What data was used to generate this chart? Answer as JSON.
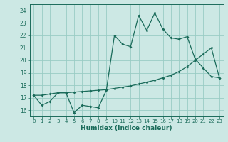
{
  "xlabel": "Humidex (Indice chaleur)",
  "ylabel": "",
  "bg_color": "#cce8e4",
  "grid_color": "#99ccc4",
  "line_color": "#1a6b5a",
  "xlim": [
    -0.5,
    23.5
  ],
  "ylim": [
    15.5,
    24.5
  ],
  "xticks": [
    0,
    1,
    2,
    3,
    4,
    5,
    6,
    7,
    8,
    9,
    10,
    11,
    12,
    13,
    14,
    15,
    16,
    17,
    18,
    19,
    20,
    21,
    22,
    23
  ],
  "yticks": [
    16,
    17,
    18,
    19,
    20,
    21,
    22,
    23,
    24
  ],
  "series1_x": [
    0,
    1,
    2,
    3,
    4,
    5,
    6,
    7,
    8,
    9,
    10,
    11,
    12,
    13,
    14,
    15,
    16,
    17,
    18,
    19,
    20,
    21,
    22,
    23
  ],
  "series1_y": [
    17.2,
    16.4,
    16.7,
    17.4,
    17.4,
    15.8,
    16.4,
    16.3,
    16.2,
    17.6,
    22.0,
    21.3,
    21.1,
    23.6,
    22.4,
    23.8,
    22.5,
    21.8,
    21.7,
    21.9,
    20.1,
    19.4,
    18.7,
    18.6
  ],
  "series2_x": [
    0,
    1,
    2,
    3,
    4,
    5,
    6,
    7,
    8,
    9,
    10,
    11,
    12,
    13,
    14,
    15,
    16,
    17,
    18,
    19,
    20,
    21,
    22,
    23
  ],
  "series2_y": [
    17.2,
    17.2,
    17.3,
    17.4,
    17.4,
    17.45,
    17.5,
    17.55,
    17.6,
    17.65,
    17.75,
    17.85,
    17.95,
    18.1,
    18.25,
    18.4,
    18.6,
    18.8,
    19.1,
    19.5,
    20.0,
    20.5,
    21.0,
    18.6
  ]
}
